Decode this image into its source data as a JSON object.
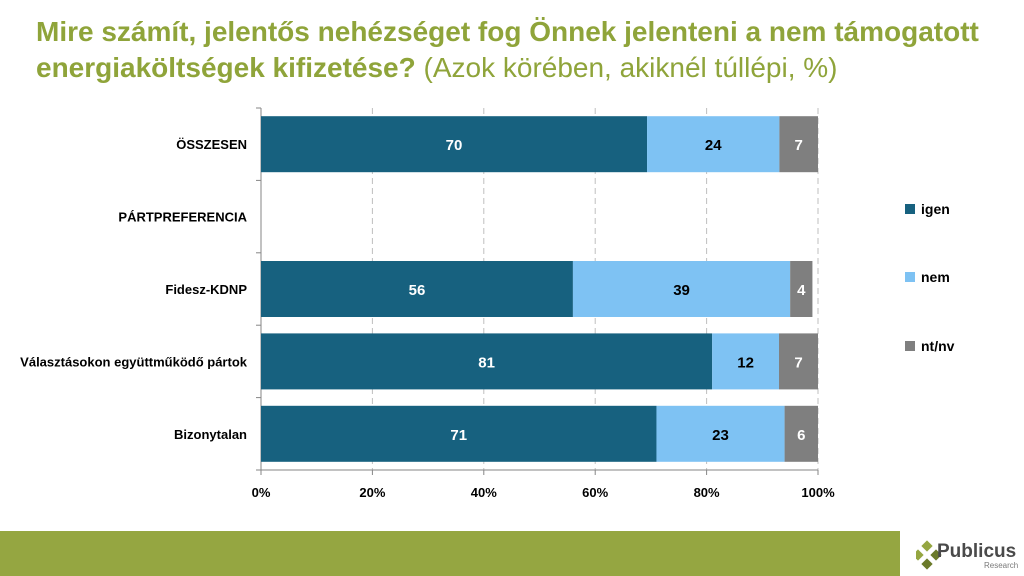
{
  "title": {
    "bold": "Mire számít, jelentős nehézséget fog Önnek jelenteni a nem támogatott energiaköltségek kifizetése?",
    "light": " (Azok körében, akiknél túllépi, %)"
  },
  "chart_data": {
    "type": "bar",
    "orientation": "horizontal",
    "stacked": true,
    "categories": [
      "ÖSSZESEN",
      "PÁRTPREFERENCIA",
      "Fidesz-KDNP",
      "Választásokon együttműködő pártok",
      "Bizonytalan"
    ],
    "series": [
      {
        "name": "igen",
        "color": "#17617f",
        "values": [
          70,
          null,
          56,
          81,
          71
        ]
      },
      {
        "name": "nem",
        "color": "#7ec2f3",
        "values": [
          24,
          null,
          39,
          12,
          23
        ]
      },
      {
        "name": "nt/nv",
        "color": "#7f7f7f",
        "values": [
          7,
          null,
          4,
          7,
          6
        ]
      }
    ],
    "xlim": [
      0,
      100
    ],
    "xticks": [
      "0%",
      "20%",
      "40%",
      "60%",
      "80%",
      "100%"
    ],
    "grid": true,
    "legend": "right"
  },
  "brand": {
    "name": "Publicus",
    "sub": "Research"
  }
}
